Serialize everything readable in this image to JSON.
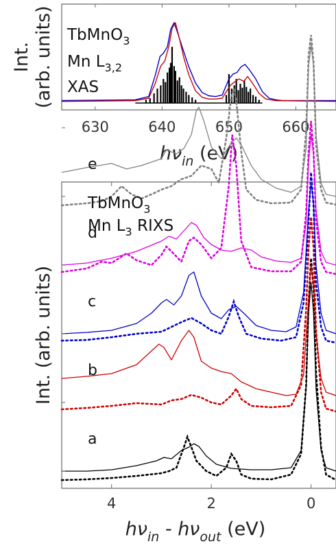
{
  "chart_data": [
    {
      "type": "line",
      "panel": "top",
      "annotation_lines": [
        {
          "text": "TbMnO",
          "sub": "3"
        },
        {
          "text": "Mn L",
          "sub": "3,2"
        },
        {
          "text": "XAS",
          "sub": ""
        }
      ],
      "xlabel": {
        "main": "hν",
        "sub": "in",
        "unit": " (eV)"
      },
      "ylabel": "Int.",
      "ylabel2": "(arb. units)",
      "xlim": [
        625,
        666
      ],
      "ylim": [
        0,
        1.05
      ],
      "xticks": [
        630,
        640,
        650,
        660
      ],
      "series": [
        {
          "color": "#0000cc",
          "x": [
            625,
            636,
            638,
            639,
            639.7,
            640.2,
            640.8,
            641.3,
            641.8,
            642.3,
            643,
            644,
            645,
            646,
            647,
            648,
            649,
            649.5,
            650,
            650.6,
            651.2,
            651.8,
            652.4,
            653,
            654,
            655,
            656,
            657,
            658,
            666
          ],
          "values": [
            0.03,
            0.04,
            0.08,
            0.35,
            0.58,
            0.62,
            0.7,
            0.92,
            1.0,
            0.88,
            0.7,
            0.45,
            0.25,
            0.13,
            0.09,
            0.08,
            0.1,
            0.2,
            0.3,
            0.36,
            0.38,
            0.45,
            0.48,
            0.42,
            0.3,
            0.14,
            0.06,
            0.04,
            0.03,
            0.03
          ]
        },
        {
          "color": "#cc0000",
          "x": [
            625,
            636,
            638,
            639,
            639.8,
            640.4,
            641,
            641.5,
            642,
            642.6,
            643.3,
            644,
            645,
            646,
            647,
            648,
            649,
            649.6,
            650.2,
            650.8,
            651.5,
            652.2,
            652.8,
            653.5,
            654.5,
            655.5,
            657,
            666
          ],
          "values": [
            0.02,
            0.03,
            0.06,
            0.25,
            0.46,
            0.52,
            0.7,
            0.93,
            1.0,
            0.8,
            0.55,
            0.35,
            0.15,
            0.07,
            0.05,
            0.05,
            0.06,
            0.14,
            0.22,
            0.26,
            0.3,
            0.27,
            0.33,
            0.25,
            0.12,
            0.05,
            0.03,
            0.02
          ]
        }
      ],
      "sticks": {
        "color": "#000000",
        "x": [
          637.6,
          638.2,
          638.8,
          639.3,
          639.8,
          640.2,
          640.5,
          640.8,
          641.1,
          641.3,
          641.5,
          641.8,
          642.0,
          642.3,
          642.6,
          642.9,
          643.2,
          643.6,
          644.0,
          644.5,
          645.0,
          649.6,
          650.0,
          650.4,
          650.8,
          651.1,
          651.4,
          651.7,
          652.0,
          652.3,
          652.6,
          652.9,
          653.2,
          653.6,
          654.0,
          654.5
        ],
        "values": [
          0.04,
          0.06,
          0.12,
          0.18,
          0.22,
          0.3,
          0.26,
          0.38,
          0.44,
          0.5,
          0.7,
          0.46,
          0.4,
          0.28,
          0.32,
          0.22,
          0.18,
          0.14,
          0.1,
          0.07,
          0.04,
          0.1,
          0.36,
          0.18,
          0.22,
          0.3,
          0.16,
          0.24,
          0.19,
          0.28,
          0.2,
          0.14,
          0.18,
          0.1,
          0.08,
          0.04
        ]
      }
    },
    {
      "type": "line",
      "panel": "bottom",
      "annotation_lines": [
        {
          "text": "TbMnO",
          "sub": "3"
        },
        {
          "text": "Mn L",
          "sub": "3",
          "after": " RIXS"
        }
      ],
      "xlabel": {
        "parts": [
          {
            "t": "hν",
            "sub": "in"
          },
          {
            "t": " - hν",
            "sub": "out"
          }
        ],
        "unit": " (eV)"
      },
      "ylabel": "Int. (arb. units)",
      "xlim": [
        5.0,
        -0.5
      ],
      "ylim": [
        0,
        6.0
      ],
      "xticks": [
        4,
        2,
        0
      ],
      "curves": [
        {
          "label": "a",
          "offset": 0.12,
          "color": "#000000",
          "solid_x": [
            5.0,
            4.5,
            4.0,
            3.5,
            3.1,
            2.95,
            2.8,
            2.6,
            2.45,
            2.35,
            2.25,
            2.1,
            1.9,
            1.6,
            1.2,
            0.8,
            0.4,
            0.2,
            0.1,
            0.05,
            0.0,
            -0.05,
            -0.1,
            -0.2,
            -0.3,
            -0.5
          ],
          "solid_y": [
            0.0,
            0.0,
            0.02,
            0.08,
            0.15,
            0.2,
            0.18,
            0.3,
            0.35,
            0.4,
            0.36,
            0.22,
            0.1,
            0.04,
            0.02,
            0.02,
            0.05,
            0.3,
            1.2,
            2.3,
            2.75,
            2.3,
            1.2,
            0.3,
            0.05,
            0.0
          ],
          "dotted_x": [
            5.0,
            4.5,
            4.0,
            3.5,
            3.0,
            2.85,
            2.7,
            2.55,
            2.48,
            2.4,
            2.3,
            2.1,
            1.9,
            1.7,
            1.6,
            1.5,
            1.4,
            1.2,
            0.8,
            0.4,
            0.2,
            0.1,
            0.05,
            0.0,
            -0.05,
            -0.1,
            -0.2,
            -0.3,
            -0.5
          ],
          "dotted_y": [
            0.02,
            0.03,
            0.05,
            0.08,
            0.12,
            0.15,
            0.2,
            0.5,
            0.65,
            0.5,
            0.3,
            0.15,
            0.08,
            0.2,
            0.4,
            0.3,
            0.1,
            0.04,
            0.03,
            0.1,
            0.4,
            1.4,
            2.6,
            3.25,
            2.8,
            1.6,
            0.5,
            0.1,
            0.02
          ]
        },
        {
          "label": "b",
          "offset": 1.12,
          "color": "#cc0000",
          "solid_x": [
            5.0,
            4.5,
            4.0,
            3.5,
            3.2,
            3.05,
            2.95,
            2.8,
            2.6,
            2.45,
            2.35,
            2.2,
            2.0,
            1.8,
            1.6,
            1.4,
            1.1,
            0.8,
            0.5,
            0.3,
            0.15,
            0.05,
            0.0,
            -0.05,
            -0.1,
            -0.2,
            -0.3,
            -0.5
          ],
          "solid_y": [
            0.35,
            0.38,
            0.42,
            0.55,
            0.75,
            0.85,
            0.8,
            0.62,
            0.9,
            1.05,
            0.95,
            0.6,
            0.5,
            0.45,
            0.42,
            0.3,
            0.2,
            0.15,
            0.1,
            0.12,
            0.4,
            1.5,
            2.0,
            1.7,
            1.0,
            0.35,
            0.15,
            0.1
          ],
          "dotted_x": [
            5.0,
            4.5,
            4.0,
            3.5,
            3.0,
            2.8,
            2.6,
            2.4,
            2.2,
            2.0,
            1.8,
            1.6,
            1.5,
            1.4,
            1.2,
            0.8,
            0.4,
            0.2,
            0.1,
            0.05,
            0.0,
            -0.05,
            -0.1,
            -0.2,
            -0.3,
            -0.5
          ],
          "dotted_y": [
            0.05,
            0.07,
            0.1,
            0.14,
            0.12,
            0.18,
            0.2,
            0.26,
            0.22,
            0.15,
            0.12,
            0.25,
            0.35,
            0.2,
            0.1,
            0.08,
            0.1,
            0.4,
            1.5,
            2.4,
            2.85,
            2.4,
            1.2,
            0.3,
            0.06,
            0.02
          ]
        },
        {
          "label": "c",
          "offset": 2.12,
          "color": "#0000cc",
          "solid_x": [
            5.0,
            4.5,
            4.0,
            3.5,
            3.2,
            3.0,
            2.9,
            2.75,
            2.6,
            2.45,
            2.35,
            2.2,
            2.0,
            1.8,
            1.65,
            1.5,
            1.35,
            1.1,
            0.8,
            0.5,
            0.3,
            0.15,
            0.05,
            0.0,
            -0.05,
            -0.1,
            -0.2,
            -0.3,
            -0.5
          ],
          "solid_y": [
            0.0,
            0.02,
            0.05,
            0.15,
            0.3,
            0.45,
            0.5,
            0.42,
            0.55,
            0.85,
            0.9,
            0.55,
            0.3,
            0.22,
            0.35,
            0.4,
            0.3,
            0.12,
            0.05,
            0.03,
            0.1,
            0.6,
            1.8,
            2.2,
            1.9,
            1.0,
            0.3,
            0.05,
            0.0
          ],
          "dotted_x": [
            5.0,
            4.5,
            4.0,
            3.5,
            3.0,
            2.8,
            2.6,
            2.4,
            2.2,
            2.0,
            1.8,
            1.65,
            1.55,
            1.45,
            1.3,
            1.0,
            0.6,
            0.3,
            0.15,
            0.05,
            0.0,
            -0.05,
            -0.1,
            -0.2,
            -0.3,
            -0.5
          ],
          "dotted_y": [
            0.05,
            0.06,
            0.1,
            0.15,
            0.18,
            0.25,
            0.32,
            0.38,
            0.3,
            0.2,
            0.15,
            0.4,
            0.62,
            0.4,
            0.15,
            0.08,
            0.05,
            0.1,
            0.6,
            1.8,
            2.5,
            2.0,
            0.9,
            0.25,
            0.05,
            0.02
          ]
        },
        {
          "label": "d",
          "offset": 3.12,
          "color": "#dd00dd",
          "solid_x": [
            5.0,
            4.5,
            4.0,
            3.5,
            3.0,
            2.85,
            2.7,
            2.55,
            2.4,
            2.3,
            2.15,
            2.0,
            1.8,
            1.6,
            1.4,
            1.2,
            1.0,
            0.7,
            0.4,
            0.2,
            0.1,
            0.05,
            0.0,
            -0.05,
            -0.1,
            -0.2,
            -0.3,
            -0.5
          ],
          "solid_y": [
            0.0,
            0.03,
            0.1,
            0.2,
            0.35,
            0.42,
            0.38,
            0.5,
            0.62,
            0.58,
            0.4,
            0.3,
            0.22,
            0.2,
            0.25,
            0.22,
            0.12,
            0.06,
            0.04,
            0.1,
            0.6,
            1.5,
            1.9,
            1.6,
            0.8,
            0.2,
            0.04,
            0.0
          ],
          "dotted_x": [
            5.0,
            4.5,
            4.2,
            4.0,
            3.7,
            3.5,
            3.2,
            3.0,
            2.9,
            2.8,
            2.6,
            2.45,
            2.35,
            2.2,
            2.0,
            1.8,
            1.65,
            1.58,
            1.5,
            1.4,
            1.2,
            0.8,
            0.4,
            0.2,
            0.1,
            0.05,
            0.0,
            -0.05,
            -0.1,
            -0.2,
            -0.3,
            -0.5
          ],
          "dotted_y": [
            0.05,
            0.1,
            0.2,
            0.18,
            0.32,
            0.22,
            0.15,
            0.3,
            0.42,
            0.35,
            0.2,
            0.5,
            0.55,
            0.45,
            0.25,
            0.4,
            1.3,
            2.05,
            1.6,
            0.5,
            0.12,
            0.06,
            0.06,
            0.2,
            0.9,
            1.8,
            2.25,
            1.8,
            0.8,
            0.2,
            0.05,
            0.02
          ]
        },
        {
          "label": "e",
          "offset": 4.12,
          "color": "#808080",
          "solid_x": [
            5.0,
            4.5,
            4.0,
            3.7,
            3.4,
            3.0,
            2.9,
            2.8,
            2.7,
            2.55,
            2.4,
            2.3,
            2.25,
            2.15,
            2.0,
            1.8,
            1.6,
            1.5,
            1.4,
            1.2,
            1.0,
            0.7,
            0.4,
            0.2,
            0.1,
            0.05,
            0.0,
            -0.05,
            -0.1,
            -0.2,
            -0.3,
            -0.5
          ],
          "solid_y": [
            0.35,
            0.42,
            0.48,
            0.4,
            0.45,
            0.55,
            0.68,
            0.65,
            0.62,
            0.7,
            0.9,
            1.25,
            1.3,
            1.1,
            0.72,
            0.55,
            0.78,
            0.85,
            0.75,
            0.45,
            0.25,
            0.12,
            0.06,
            0.15,
            0.7,
            1.9,
            2.2,
            1.9,
            0.9,
            0.2,
            0.03,
            0.0
          ],
          "dotted_x": [
            5.0,
            4.5,
            4.2,
            4.0,
            3.8,
            3.6,
            3.4,
            3.2,
            3.0,
            2.8,
            2.6,
            2.4,
            2.2,
            2.0,
            1.85,
            1.7,
            1.6,
            1.55,
            1.5,
            1.4,
            1.3,
            1.1,
            0.8,
            0.4,
            0.2,
            0.1,
            0.05,
            0.0,
            -0.05,
            -0.1,
            -0.2,
            -0.3,
            -0.5
          ],
          "dotted_y": [
            0.02,
            0.05,
            0.08,
            0.15,
            0.3,
            0.18,
            0.12,
            0.18,
            0.25,
            0.3,
            0.4,
            0.45,
            0.6,
            0.55,
            0.35,
            1.0,
            1.6,
            1.72,
            1.55,
            0.8,
            0.25,
            0.1,
            0.05,
            0.06,
            0.25,
            1.1,
            2.2,
            2.5,
            2.1,
            0.9,
            0.25,
            0.06,
            0.03
          ]
        }
      ]
    }
  ]
}
